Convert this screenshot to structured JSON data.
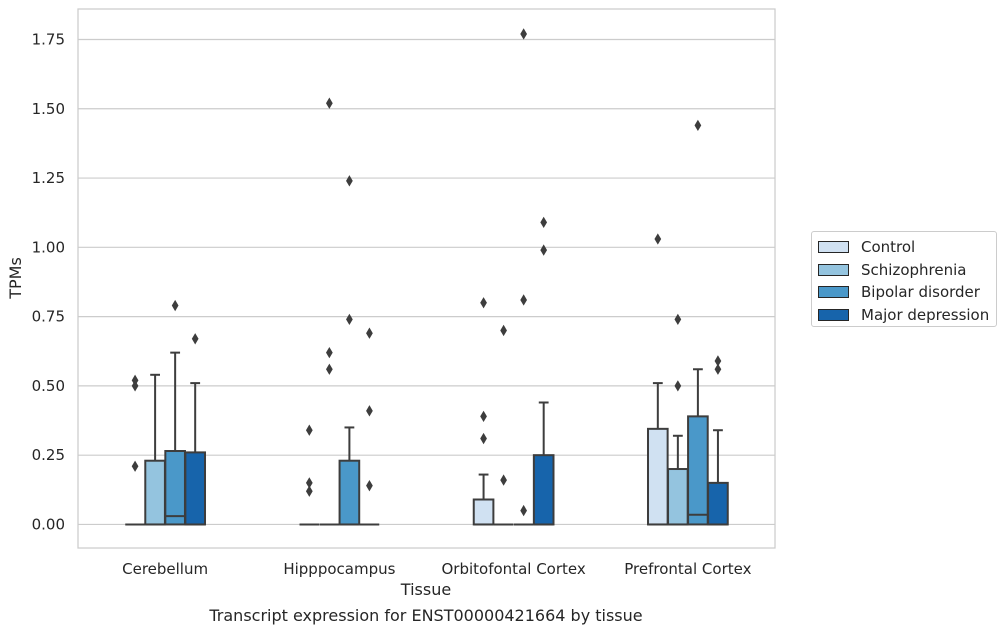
{
  "caption": "Transcript expression for ENST00000421664 by tissue",
  "chart_data": {
    "type": "box",
    "xlabel": "Tissue",
    "ylabel": "TPMs",
    "ylim": [
      -0.085,
      1.86
    ],
    "yticks": [
      0.0,
      0.25,
      0.5,
      0.75,
      1.0,
      1.25,
      1.5,
      1.75
    ],
    "ytick_labels": [
      "0.00",
      "0.25",
      "0.50",
      "0.75",
      "1.00",
      "1.25",
      "1.50",
      "1.75"
    ],
    "grid": "horizontal",
    "legend_position": "right",
    "categories": [
      "Cerebellum",
      "Hipppocampus",
      "Orbitofontal Cortex",
      "Prefrontal Cortex"
    ],
    "series": [
      {
        "name": "Control",
        "color": "#d0e1f2",
        "boxes": [
          {
            "q1": 0.0,
            "median": 0.0,
            "q3": 0.0,
            "whisker_low": 0.0,
            "whisker_high": 0.0,
            "outliers": [
              0.21,
              0.5,
              0.52
            ]
          },
          {
            "q1": 0.0,
            "median": 0.0,
            "q3": 0.0,
            "whisker_low": 0.0,
            "whisker_high": 0.0,
            "outliers": [
              0.12,
              0.15,
              0.34
            ]
          },
          {
            "q1": 0.0,
            "median": 0.0,
            "q3": 0.09,
            "whisker_low": 0.0,
            "whisker_high": 0.18,
            "outliers": [
              0.31,
              0.39,
              0.8
            ]
          },
          {
            "q1": 0.0,
            "median": 0.0,
            "q3": 0.345,
            "whisker_low": 0.0,
            "whisker_high": 0.51,
            "outliers": [
              1.03
            ]
          }
        ]
      },
      {
        "name": "Schizophrenia",
        "color": "#94c4df",
        "boxes": [
          {
            "q1": 0.0,
            "median": 0.0,
            "q3": 0.23,
            "whisker_low": 0.0,
            "whisker_high": 0.54,
            "outliers": []
          },
          {
            "q1": 0.0,
            "median": 0.0,
            "q3": 0.0,
            "whisker_low": 0.0,
            "whisker_high": 0.0,
            "outliers": [
              0.56,
              0.62,
              1.52
            ]
          },
          {
            "q1": 0.0,
            "median": 0.0,
            "q3": 0.0,
            "whisker_low": 0.0,
            "whisker_high": 0.0,
            "outliers": [
              0.16,
              0.7
            ]
          },
          {
            "q1": 0.0,
            "median": 0.0,
            "q3": 0.2,
            "whisker_low": 0.0,
            "whisker_high": 0.32,
            "outliers": [
              0.5,
              0.74
            ]
          }
        ]
      },
      {
        "name": "Bipolar disorder",
        "color": "#4a98c9",
        "boxes": [
          {
            "q1": 0.0,
            "median": 0.03,
            "q3": 0.265,
            "whisker_low": 0.0,
            "whisker_high": 0.62,
            "outliers": [
              0.79
            ]
          },
          {
            "q1": 0.0,
            "median": 0.0,
            "q3": 0.23,
            "whisker_low": 0.0,
            "whisker_high": 0.35,
            "outliers": [
              0.74,
              1.24
            ]
          },
          {
            "q1": 0.0,
            "median": 0.0,
            "q3": 0.0,
            "whisker_low": 0.0,
            "whisker_high": 0.0,
            "outliers": [
              0.05,
              0.81,
              1.77
            ]
          },
          {
            "q1": 0.0,
            "median": 0.035,
            "q3": 0.39,
            "whisker_low": 0.0,
            "whisker_high": 0.56,
            "outliers": [
              1.44
            ]
          }
        ]
      },
      {
        "name": "Major depression",
        "color": "#1764ab",
        "boxes": [
          {
            "q1": 0.0,
            "median": 0.0,
            "q3": 0.26,
            "whisker_low": 0.0,
            "whisker_high": 0.51,
            "outliers": [
              0.67
            ]
          },
          {
            "q1": 0.0,
            "median": 0.0,
            "q3": 0.0,
            "whisker_low": 0.0,
            "whisker_high": 0.0,
            "outliers": [
              0.14,
              0.41,
              0.69
            ]
          },
          {
            "q1": 0.0,
            "median": 0.0,
            "q3": 0.25,
            "whisker_low": 0.0,
            "whisker_high": 0.44,
            "outliers": [
              0.99,
              1.09
            ]
          },
          {
            "q1": 0.0,
            "median": 0.0,
            "q3": 0.15,
            "whisker_low": 0.0,
            "whisker_high": 0.34,
            "outliers": [
              0.56,
              0.59
            ]
          }
        ]
      }
    ]
  }
}
